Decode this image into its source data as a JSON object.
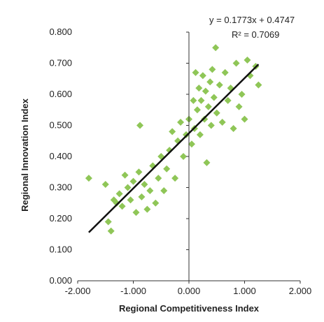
{
  "chart_data": {
    "type": "scatter",
    "xlabel": "Regional Competitiveness Index",
    "ylabel": "Regional Innovation Index",
    "xlim": [
      -2.0,
      2.0
    ],
    "ylim": [
      0.0,
      0.8
    ],
    "x_ticks": [
      -2.0,
      -1.0,
      0.0,
      1.0,
      2.0
    ],
    "x_tick_labels": [
      "-2.000",
      "-1.000",
      "0.000",
      "1.000",
      "2.000"
    ],
    "y_ticks": [
      0.0,
      0.1,
      0.2,
      0.3,
      0.4,
      0.5,
      0.6,
      0.7,
      0.8
    ],
    "y_tick_labels": [
      "0.000",
      "0.100",
      "0.200",
      "0.300",
      "0.400",
      "0.500",
      "0.600",
      "0.700",
      "0.800"
    ],
    "grid": false,
    "trendline": {
      "slope": 0.1773,
      "intercept": 0.4747,
      "x_range": [
        -1.8,
        1.25
      ],
      "equation_label": "y = 0.1773x + 0.4747",
      "r2_label": "R² = 0.7069"
    },
    "series": [
      {
        "marker": "diamond",
        "color": "#8fc657",
        "points": [
          [
            -1.8,
            0.33
          ],
          [
            -1.5,
            0.31
          ],
          [
            -1.45,
            0.19
          ],
          [
            -1.4,
            0.16
          ],
          [
            -1.35,
            0.26
          ],
          [
            -1.3,
            0.25
          ],
          [
            -1.25,
            0.28
          ],
          [
            -1.2,
            0.24
          ],
          [
            -1.15,
            0.34
          ],
          [
            -1.1,
            0.3
          ],
          [
            -1.05,
            0.26
          ],
          [
            -1.0,
            0.32
          ],
          [
            -0.95,
            0.22
          ],
          [
            -0.9,
            0.35
          ],
          [
            -0.88,
            0.5
          ],
          [
            -0.85,
            0.27
          ],
          [
            -0.8,
            0.31
          ],
          [
            -0.75,
            0.23
          ],
          [
            -0.7,
            0.29
          ],
          [
            -0.65,
            0.37
          ],
          [
            -0.6,
            0.25
          ],
          [
            -0.55,
            0.33
          ],
          [
            -0.5,
            0.4
          ],
          [
            -0.45,
            0.29
          ],
          [
            -0.4,
            0.36
          ],
          [
            -0.35,
            0.42
          ],
          [
            -0.3,
            0.48
          ],
          [
            -0.25,
            0.33
          ],
          [
            -0.2,
            0.45
          ],
          [
            -0.15,
            0.51
          ],
          [
            -0.1,
            0.4
          ],
          [
            -0.05,
            0.47
          ],
          [
            0.0,
            0.52
          ],
          [
            0.05,
            0.44
          ],
          [
            0.08,
            0.58
          ],
          [
            0.1,
            0.49
          ],
          [
            0.12,
            0.67
          ],
          [
            0.15,
            0.55
          ],
          [
            0.18,
            0.62
          ],
          [
            0.2,
            0.47
          ],
          [
            0.22,
            0.58
          ],
          [
            0.25,
            0.66
          ],
          [
            0.28,
            0.52
          ],
          [
            0.3,
            0.61
          ],
          [
            0.32,
            0.38
          ],
          [
            0.35,
            0.56
          ],
          [
            0.38,
            0.64
          ],
          [
            0.4,
            0.5
          ],
          [
            0.42,
            0.68
          ],
          [
            0.45,
            0.59
          ],
          [
            0.48,
            0.75
          ],
          [
            0.5,
            0.54
          ],
          [
            0.55,
            0.63
          ],
          [
            0.6,
            0.51
          ],
          [
            0.65,
            0.67
          ],
          [
            0.7,
            0.58
          ],
          [
            0.75,
            0.62
          ],
          [
            0.8,
            0.49
          ],
          [
            0.85,
            0.7
          ],
          [
            0.9,
            0.56
          ],
          [
            0.95,
            0.6
          ],
          [
            1.0,
            0.52
          ],
          [
            1.05,
            0.71
          ],
          [
            1.1,
            0.66
          ],
          [
            1.2,
            0.69
          ],
          [
            1.25,
            0.63
          ]
        ]
      }
    ]
  }
}
